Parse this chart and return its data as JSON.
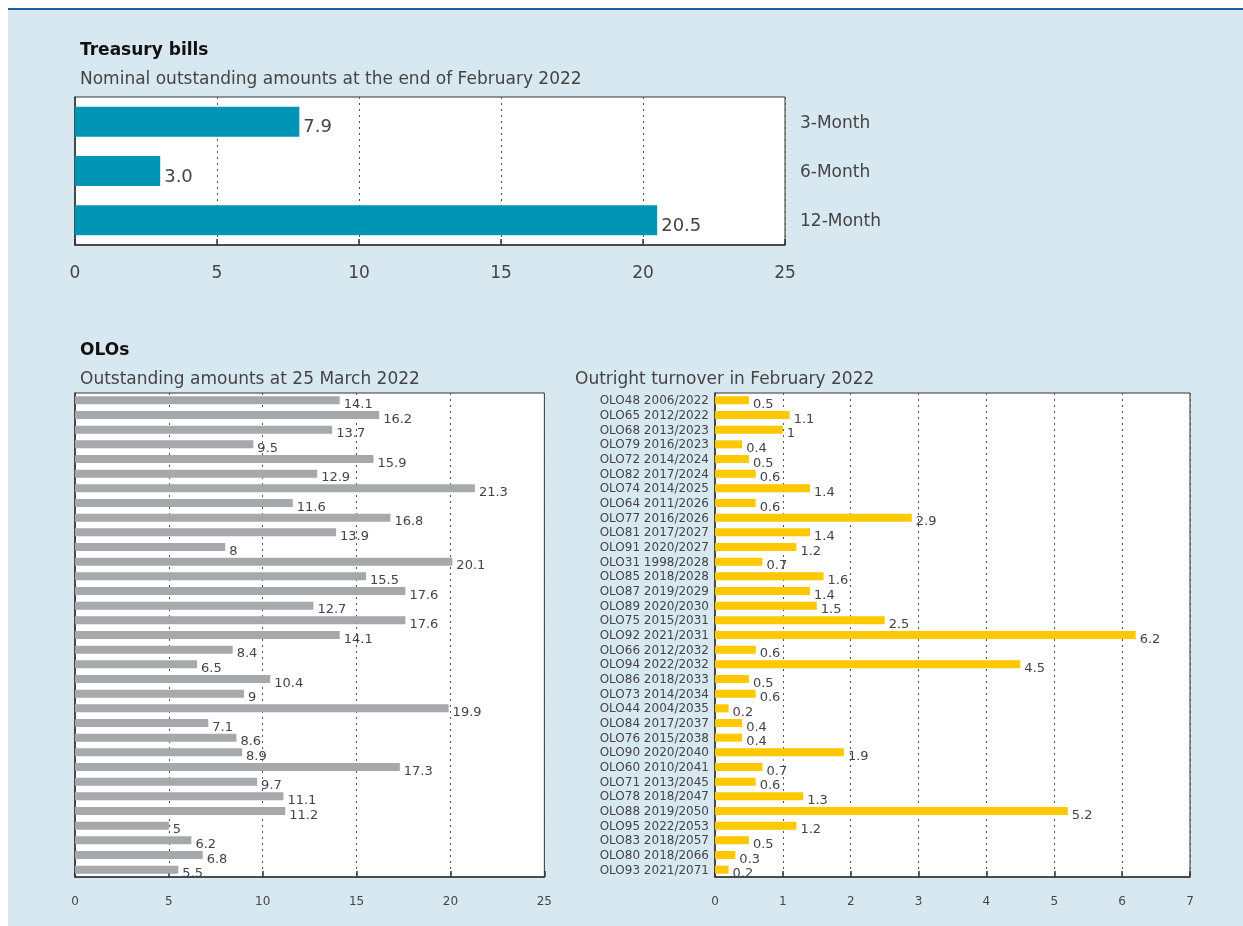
{
  "chart_data": [
    {
      "type": "bar",
      "orientation": "horizontal",
      "title": "Treasury bills",
      "subtitle": "Nominal outstanding amounts at the end of February 2022",
      "categories": [
        "3-Month",
        "6-Month",
        "12-Month"
      ],
      "values": [
        7.9,
        3.0,
        20.5
      ],
      "value_labels": [
        "7.9",
        "3.0",
        "20.5"
      ],
      "color": "#0095b4",
      "xlim": [
        0,
        25
      ],
      "xticks": [
        0,
        5,
        10,
        15,
        20,
        25
      ],
      "grid": "x"
    },
    {
      "type": "bar",
      "orientation": "horizontal",
      "title": "OLOs",
      "subtitle": "Outstanding amounts at 25 March 2022",
      "categories": [
        null,
        null,
        null,
        null,
        null,
        null,
        null,
        null,
        null,
        null,
        null,
        null,
        null,
        null,
        null,
        null,
        null,
        null,
        null,
        null,
        null,
        null,
        null,
        null,
        null,
        null,
        null,
        null,
        null,
        null,
        null,
        null,
        null
      ],
      "values": [
        14.1,
        16.2,
        13.7,
        9.5,
        15.9,
        12.9,
        21.3,
        11.6,
        16.8,
        13.9,
        8,
        20.1,
        15.5,
        17.6,
        12.7,
        17.6,
        14.1,
        8.4,
        6.5,
        10.4,
        9,
        19.9,
        7.1,
        8.6,
        8.9,
        17.3,
        9.7,
        11.1,
        11.2,
        5,
        6.2,
        6.8,
        5.5
      ],
      "data_labels": true,
      "color": "#a7a8ab",
      "xlim": [
        0,
        25
      ],
      "xticks": [
        0,
        5,
        10,
        15,
        20,
        25
      ],
      "grid": "x"
    },
    {
      "type": "bar",
      "orientation": "horizontal",
      "subtitle": "Outright turnover in February 2022",
      "categories": [
        "OLO48 2006/2022",
        "OLO65 2012/2022",
        "OLO68 2013/2023",
        "OLO79 2016/2023",
        "OLO72 2014/2024",
        "OLO82 2017/2024",
        "OLO74 2014/2025",
        "OLO64 2011/2026",
        "OLO77 2016/2026",
        "OLO81 2017/2027",
        "OLO91 2020/2027",
        "OLO31 1998/2028",
        "OLO85 2018/2028",
        "OLO87 2019/2029",
        "OLO89 2020/2030",
        "OLO75 2015/2031",
        "OLO92 2021/2031",
        "OLO66 2012/2032",
        "OLO94 2022/2032",
        "OLO86 2018/2033",
        "OLO73 2014/2034",
        "OLO44 2004/2035",
        "OLO84 2017/2037",
        "OLO76 2015/2038",
        "OLO90 2020/2040",
        "OLO60 2010/2041",
        "OLO71 2013/2045",
        "OLO78 2018/2047",
        "OLO88 2019/2050",
        "OLO95 2022/2053",
        "OLO83 2018/2057",
        "OLO80 2018/2066",
        "OLO93 2021/2071"
      ],
      "values": [
        0.5,
        1.1,
        1,
        0.4,
        0.5,
        0.6,
        1.4,
        0.6,
        2.9,
        1.4,
        1.2,
        0.7,
        1.6,
        1.4,
        1.5,
        2.5,
        6.2,
        0.6,
        4.5,
        0.5,
        0.6,
        0.2,
        0.4,
        0.4,
        1.9,
        0.7,
        0.6,
        1.3,
        5.2,
        1.2,
        0.5,
        0.3,
        0.2
      ],
      "data_labels": true,
      "color": "#ffc800",
      "xlim": [
        0,
        7
      ],
      "xticks": [
        0,
        1,
        2,
        3,
        4,
        5,
        6,
        7
      ],
      "grid": "x"
    }
  ]
}
